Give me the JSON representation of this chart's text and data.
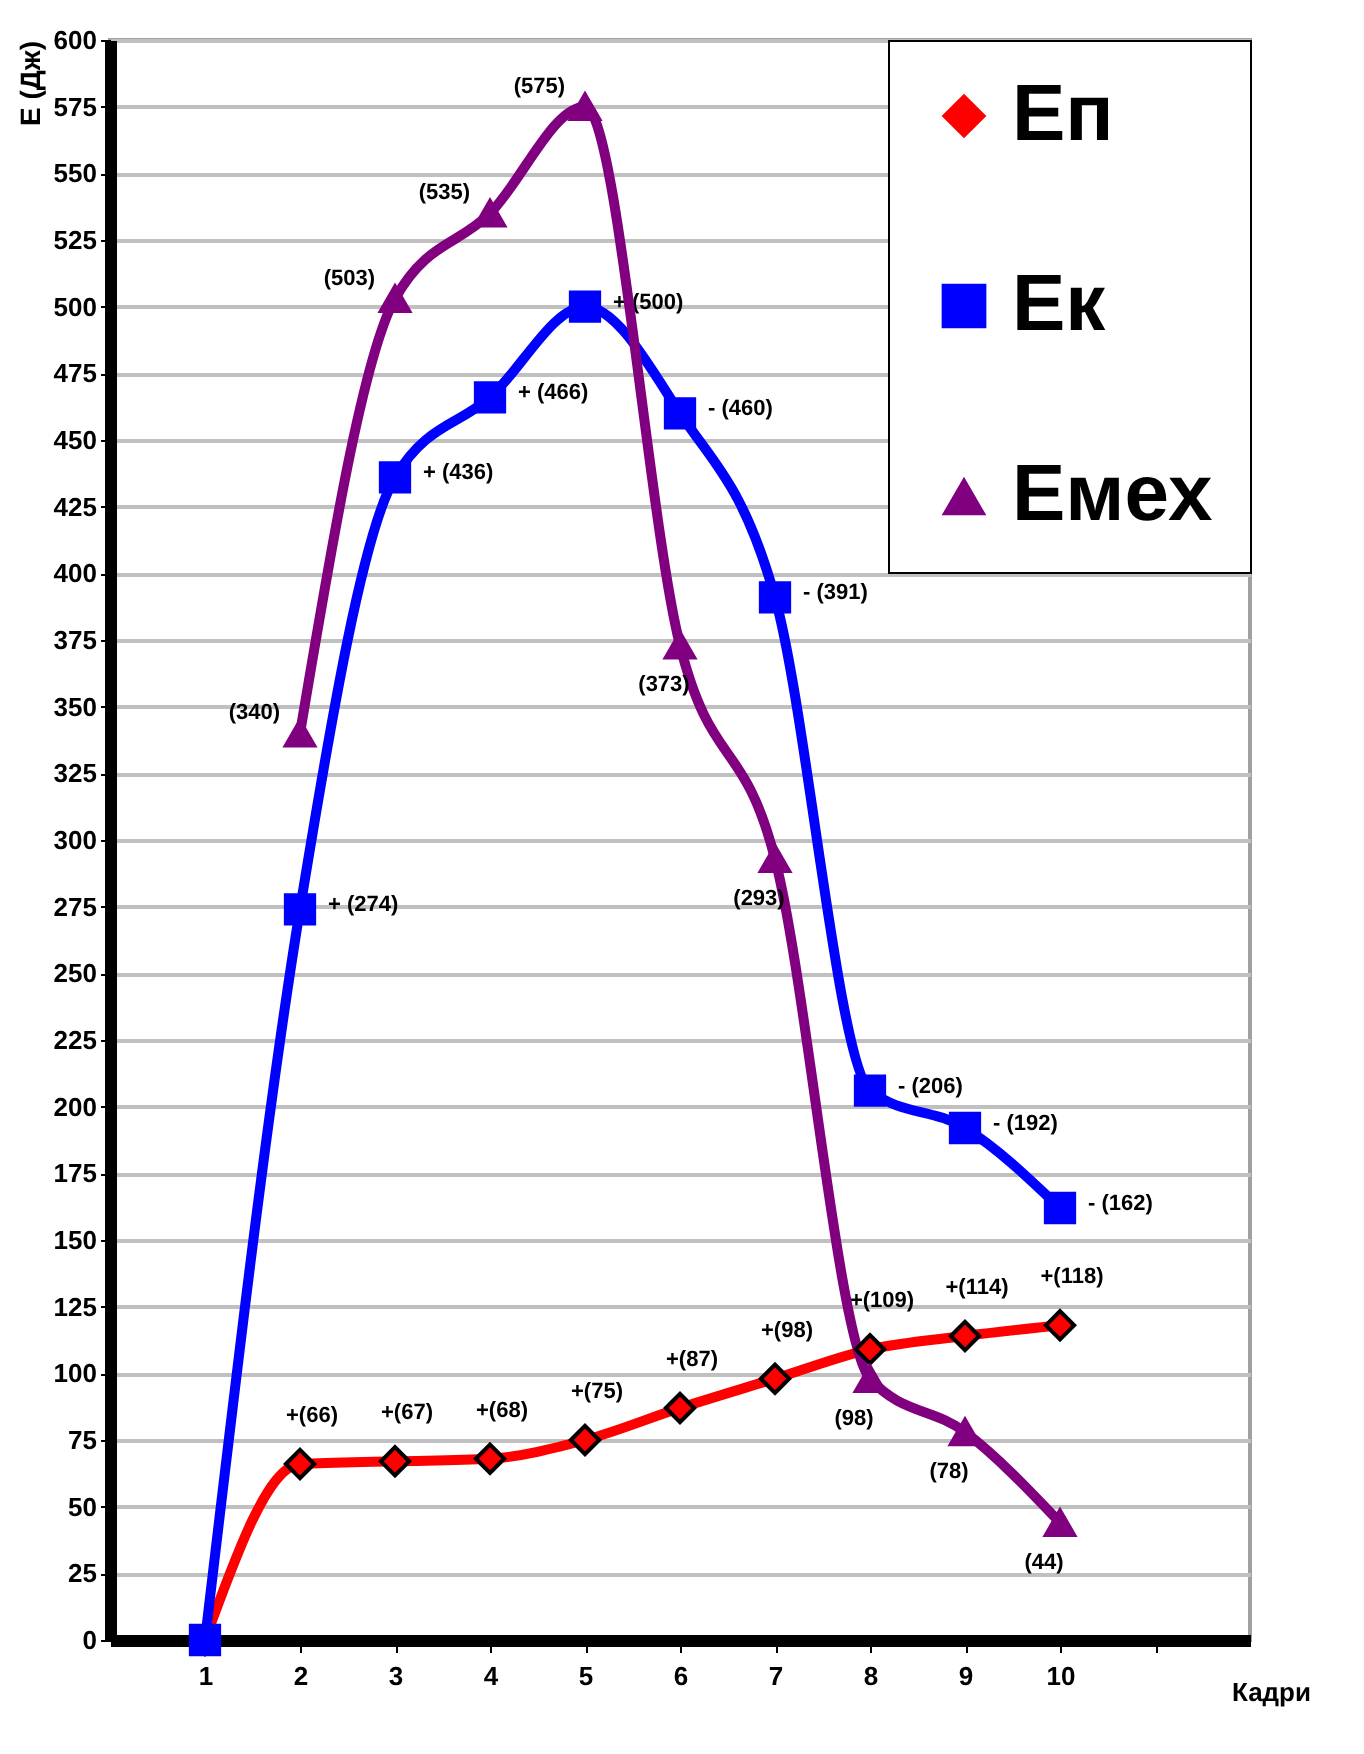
{
  "chart_data": {
    "type": "line",
    "xlabel": "Кадри",
    "ylabel": "E  (Дж)",
    "x": [
      1,
      2,
      3,
      4,
      5,
      6,
      7,
      8,
      9,
      10
    ],
    "xlim": [
      0,
      12
    ],
    "xticks": [
      1,
      2,
      3,
      4,
      5,
      6,
      7,
      8,
      9,
      10,
      {
        "value": 11,
        "label": null
      }
    ],
    "ylim": [
      0,
      600
    ],
    "yticks": [
      0,
      25,
      50,
      75,
      100,
      125,
      150,
      175,
      200,
      225,
      250,
      275,
      300,
      325,
      350,
      375,
      400,
      425,
      450,
      475,
      500,
      525,
      550,
      575,
      600
    ],
    "grid": "y",
    "legend": "top right",
    "line_style": "solid",
    "series": [
      {
        "name": "Еп",
        "color": "#ff0000",
        "marker": "diamond",
        "values": [
          0,
          66,
          67,
          68,
          75,
          87,
          98,
          109,
          114,
          118
        ],
        "value_labels": [
          null,
          "+(66)",
          "+(67)",
          "+(68)",
          "+(75)",
          "+(87)",
          "+(98)",
          "+(109)",
          "+(114)",
          "+(118)"
        ]
      },
      {
        "name": "Ек",
        "color": "#0000ff",
        "marker": "square",
        "values": [
          0,
          274,
          436,
          466,
          500,
          460,
          391,
          206,
          192,
          162
        ],
        "value_labels": [
          null,
          "+ (274)",
          "+ (436)",
          "+ (466)",
          "+ (500)",
          "- (460)",
          "- (391)",
          "- (206)",
          "- (192)",
          "- (162)"
        ]
      },
      {
        "name": "Емех",
        "color": "#800080",
        "marker": "triangle",
        "x": [
          2,
          3,
          4,
          5,
          6,
          7,
          8,
          9,
          10
        ],
        "values": [
          340,
          503,
          535,
          575,
          373,
          293,
          98,
          78,
          44
        ],
        "value_labels": [
          "(340)",
          "(503)",
          "(535)",
          "(575)",
          "(373)",
          "(293)",
          "(98)",
          "(78)",
          "(44)"
        ]
      }
    ]
  }
}
